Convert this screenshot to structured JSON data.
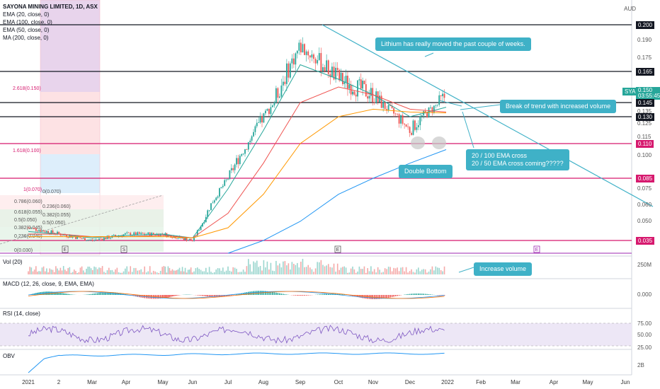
{
  "header": {
    "title": "SAYONA MINING LIMITED, 1D, ASX",
    "indicators": [
      "EMA (20, close, 0)",
      "EMA (100, close, 0)",
      "EMA (50, close, 0)",
      "MA (200, close, 0)"
    ],
    "currency": "AUD"
  },
  "price_axis_labels": [
    "0.190",
    "0.175",
    "0.135",
    "0.125",
    "0.115",
    "0.100",
    "0.075",
    "0.060",
    "0.050"
  ],
  "price_tags": [
    {
      "value": "0.200",
      "style": "black"
    },
    {
      "value": "0.165",
      "style": "black"
    },
    {
      "value": "0.145",
      "style": "black"
    },
    {
      "value": "0.130",
      "style": "black"
    },
    {
      "value": "0.110",
      "style": "pink"
    },
    {
      "value": "0.085",
      "style": "pink"
    },
    {
      "value": "0.035",
      "style": "pink"
    }
  ],
  "current_price": {
    "symbol": "SYA",
    "price": "0.150",
    "countdown": "03:55:45"
  },
  "fib_labels": {
    "left": [
      "2.618(0.150)",
      "1.618(0.100)",
      "1(0.070)",
      "0.786(0.060)",
      "0.618(0.055)",
      "0.5(0.050)",
      "0.382(0.045)",
      "0.236(0.040)",
      "0(0.030)"
    ],
    "right": [
      "0(0.070)",
      "0.236(0.060)",
      "0.382(0.055)",
      "0.5(0.050)"
    ]
  },
  "annotations": {
    "lithium": "Lithium has really moved the past couple of weeks.",
    "break_trend": "Break of trend with increased volume",
    "ema_cross": "20 / 100 EMA cross\n20 / 50 EMA cross coming?????",
    "double_bottom": "Double Bottom",
    "increase_volume": "Increase volume"
  },
  "event_markers": [
    "E",
    "S",
    "E",
    "E"
  ],
  "panels": {
    "volume": {
      "label": "Vol (20)",
      "axis": "250M"
    },
    "macd": {
      "label": "MACD (12, 26, close, 9, EMA, EMA)",
      "axis": "0.000"
    },
    "rsi": {
      "label": "RSI (14, close)",
      "axis": [
        "75.00",
        "50.00",
        "25.00"
      ]
    },
    "obv": {
      "label": "OBV",
      "axis": "2B"
    }
  },
  "x_axis": [
    "2021",
    "2",
    "Mar",
    "Apr",
    "May",
    "Jun",
    "Jul",
    "Aug",
    "Sep",
    "Oct",
    "Nov",
    "Dec",
    "2022",
    "Feb",
    "Mar",
    "Apr",
    "May",
    "Jun"
  ],
  "chart_data": {
    "type": "candlestick",
    "title": "SAYONA MINING LIMITED, 1D, ASX",
    "y_axis_currency": "AUD",
    "months": [
      "Jan 2021",
      "Feb",
      "Mar",
      "Apr",
      "May",
      "Jun",
      "Jul",
      "Aug",
      "Sep",
      "Oct",
      "Nov",
      "Dec",
      "Jan 2022"
    ],
    "approx_close": [
      0.045,
      0.04,
      0.035,
      0.04,
      0.04,
      0.035,
      0.085,
      0.13,
      0.185,
      0.16,
      0.15,
      0.12,
      0.15
    ],
    "series": [
      {
        "name": "EMA (20, close, 0)",
        "values": [
          0.042,
          0.04,
          0.037,
          0.039,
          0.04,
          0.037,
          0.075,
          0.12,
          0.17,
          0.16,
          0.15,
          0.13,
          0.14
        ]
      },
      {
        "name": "EMA (50, close, 0)",
        "values": [
          0.04,
          0.04,
          0.038,
          0.038,
          0.039,
          0.037,
          0.055,
          0.095,
          0.145,
          0.155,
          0.15,
          0.138,
          0.135
        ]
      },
      {
        "name": "EMA (100, close, 0)",
        "values": [
          0.038,
          0.038,
          0.038,
          0.038,
          0.038,
          0.037,
          0.045,
          0.07,
          0.11,
          0.13,
          0.138,
          0.135,
          0.134
        ]
      },
      {
        "name": "MA (200, close, 0)",
        "values": [
          null,
          null,
          null,
          null,
          null,
          null,
          0.025,
          0.035,
          0.05,
          0.07,
          0.085,
          0.095,
          0.105
        ]
      }
    ],
    "horizontal_levels": [
      0.2,
      0.165,
      0.145,
      0.13,
      0.11,
      0.085,
      0.035
    ],
    "ylim": [
      0.03,
      0.21
    ]
  }
}
